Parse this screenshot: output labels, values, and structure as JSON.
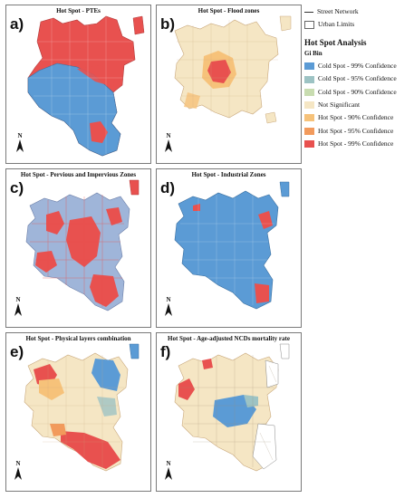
{
  "panels": [
    {
      "letter": "a)",
      "title": "Hot Spot - PTEs"
    },
    {
      "letter": "b)",
      "title": "Hot Spot - Flood zones"
    },
    {
      "letter": "c)",
      "title": "Hot Spot - Pervious and Impervious Zones"
    },
    {
      "letter": "d)",
      "title": "Hot Spot - Industrial Zones"
    },
    {
      "letter": "e)",
      "title": "Hot Spot - Physical layers combination"
    },
    {
      "letter": "f)",
      "title": "Hot Spot - Age-adjusted NCDs mortality rate"
    }
  ],
  "north_label": "N",
  "legend": {
    "street_network": "Street Network",
    "urban_limits": "Urban Limits",
    "heading": "Hot Spot Analysis",
    "subheading": "Gi Bin",
    "items": [
      {
        "label": "Cold Spot - 99% Confidence",
        "color": "#5b9bd5"
      },
      {
        "label": "Cold Spot - 95% Confidence",
        "color": "#9dc3c4"
      },
      {
        "label": "Cold Spot - 90% Confidence",
        "color": "#c8dcb0"
      },
      {
        "label": "Not Significant",
        "color": "#f5e6c4"
      },
      {
        "label": "Hot Spot - 90% Confidence",
        "color": "#f6c27a"
      },
      {
        "label": "Hot Spot - 95% Confidence",
        "color": "#f29a5c"
      },
      {
        "label": "Hot Spot - 99% Confidence",
        "color": "#e8514f"
      }
    ]
  }
}
